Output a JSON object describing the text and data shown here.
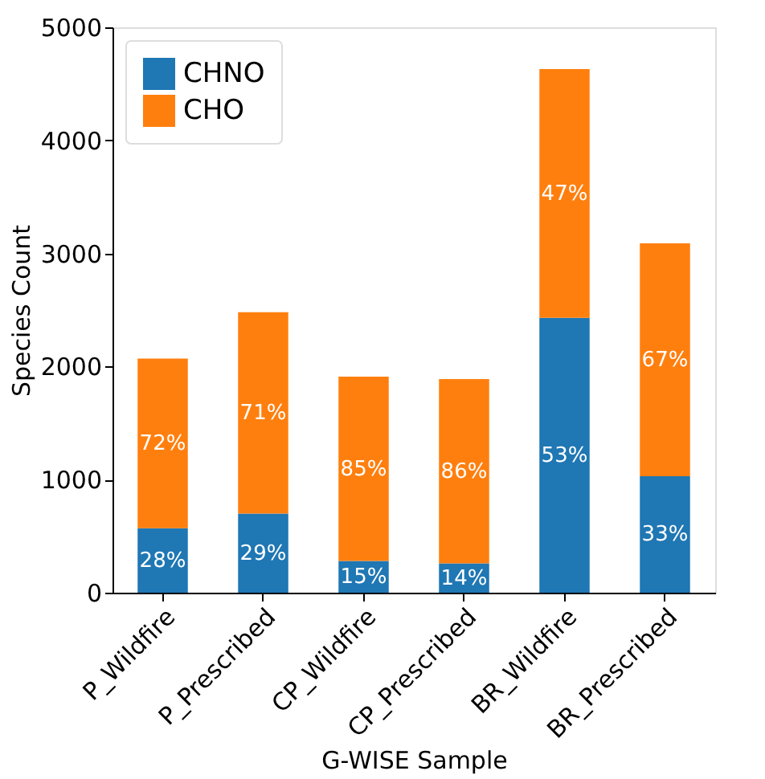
{
  "chart_data": {
    "type": "bar",
    "stacked": true,
    "xlabel": "G-WISE Sample",
    "ylabel": "Species Count",
    "categories": [
      "P_Wildfire",
      "P_Prescribed",
      "CP_Wildfire",
      "CP_Prescribed",
      "BR_Wildfire",
      "BR_Prescribed"
    ],
    "series": [
      {
        "name": "CHNO",
        "color": "#1f77b4",
        "values": [
          570,
          700,
          280,
          260,
          2430,
          1030
        ]
      },
      {
        "name": "CHO",
        "color": "#ff7f0e",
        "values": [
          1500,
          1780,
          1630,
          1630,
          2200,
          2060
        ]
      }
    ],
    "annotations": [
      "28%",
      "29%",
      "15%",
      "14%",
      "53%",
      "33%",
      "72%",
      "71%",
      "85%",
      "86%",
      "47%",
      "67%"
    ],
    "ylim": [
      0,
      5000
    ],
    "yticks": [
      0,
      1000,
      2000,
      3000,
      4000,
      5000
    ],
    "grid": false,
    "legend": "top left"
  }
}
